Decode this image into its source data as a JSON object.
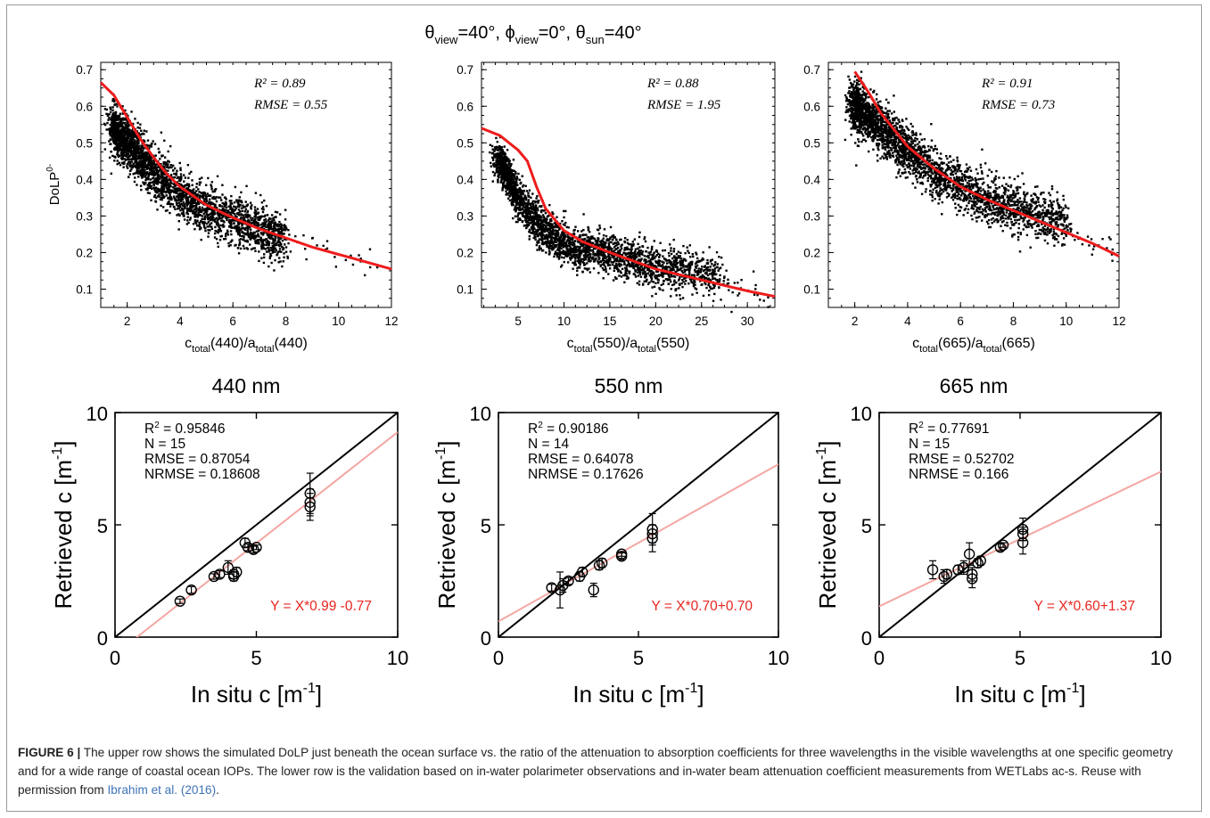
{
  "figure": {
    "geometry_title": {
      "theta": "θ",
      "view": "view",
      "eq40": "=40°, ",
      "phi": "ϕ",
      "eq0": "=0°, ",
      "sun": "sun",
      "eq40b": "=40°"
    },
    "top_ylabel": {
      "main": "DoLP",
      "sup": "0-"
    },
    "xlabel_parts": {
      "c": "c",
      "total": "total",
      "a": "/a"
    },
    "wavelength_labels": [
      "440 nm",
      "550 nm",
      "665 nm"
    ],
    "bottom_xlabel": {
      "main": "In situ c [m",
      "sup": "-1",
      "close": "]"
    },
    "bottom_ylabel": {
      "main": "Retrieved c [m",
      "sup": "-1",
      "close": "]"
    },
    "colors": {
      "fit_line": "#ee1c1c",
      "regression": "#f4a7a3",
      "one_to_one": "#000000",
      "scatter": "#000000",
      "equation": "#e8251f"
    }
  },
  "caption": {
    "label": "FIGURE 6 |",
    "text": " The upper row shows the simulated DoLP just beneath the ocean surface vs. the ratio of the attenuation to absorption coefficients for three wavelengths in the visible wavelengths at one specific geometry and for a wide range of coastal ocean IOPs. The lower row is the validation based on in-water polarimeter observations and in-water beam attenuation coefficient measurements from WETLabs ac-s. Reuse with permission from ",
    "link": "Ibrahim et al. (2016)",
    "end": "."
  },
  "chart_data": [
    {
      "type": "scatter",
      "wavelength": "440",
      "xlabel": "c_total(440)/a_total(440)",
      "ylabel": "DoLP^0-",
      "xlim": [
        1,
        12
      ],
      "ylim": [
        0.05,
        0.72
      ],
      "xticks": [
        2,
        4,
        6,
        8,
        10,
        12
      ],
      "yticks": [
        0.1,
        0.2,
        0.3,
        0.4,
        0.5,
        0.6,
        0.7
      ],
      "stats": {
        "r2": "R² = 0.89",
        "rmse": "RMSE = 0.55"
      },
      "fit_curve": {
        "x": [
          1,
          1.5,
          2,
          2.5,
          3,
          3.5,
          4,
          5,
          6,
          7,
          8,
          9,
          10,
          11,
          12
        ],
        "y": [
          0.665,
          0.63,
          0.57,
          0.51,
          0.46,
          0.415,
          0.38,
          0.33,
          0.295,
          0.265,
          0.24,
          0.215,
          0.195,
          0.175,
          0.155
        ]
      },
      "scatter_cloud": {
        "center": {
          "x": [
            1.5,
            2,
            2.5,
            3,
            3.5,
            4,
            5,
            6,
            7,
            8
          ],
          "y": [
            0.54,
            0.5,
            0.46,
            0.42,
            0.39,
            0.36,
            0.32,
            0.29,
            0.26,
            0.24
          ]
        },
        "spread": 0.06,
        "n_points": 2800
      }
    },
    {
      "type": "scatter",
      "wavelength": "550",
      "xlabel": "c_total(550)/a_total(550)",
      "ylabel": "DoLP^0-",
      "xlim": [
        1,
        33
      ],
      "ylim": [
        0.05,
        0.72
      ],
      "xticks": [
        5,
        10,
        15,
        20,
        25,
        30
      ],
      "yticks": [
        0.1,
        0.2,
        0.3,
        0.4,
        0.5,
        0.6,
        0.7
      ],
      "stats": {
        "r2": "R² = 0.88",
        "rmse": "RMSE = 1.95"
      },
      "fit_curve": {
        "x": [
          1,
          3,
          5,
          6,
          7,
          8,
          10,
          12,
          15,
          20,
          25,
          30,
          33
        ],
        "y": [
          0.54,
          0.52,
          0.48,
          0.45,
          0.38,
          0.32,
          0.26,
          0.23,
          0.2,
          0.155,
          0.125,
          0.095,
          0.08
        ]
      },
      "scatter_cloud": {
        "center": {
          "x": [
            3,
            5,
            7,
            9,
            11,
            14,
            17,
            20,
            24,
            27
          ],
          "y": [
            0.45,
            0.35,
            0.28,
            0.24,
            0.21,
            0.2,
            0.18,
            0.16,
            0.15,
            0.14
          ]
        },
        "spread": 0.05,
        "n_points": 2800
      }
    },
    {
      "type": "scatter",
      "wavelength": "665",
      "xlabel": "c_total(665)/a_total(665)",
      "ylabel": "DoLP^0-",
      "xlim": [
        1,
        12
      ],
      "ylim": [
        0.05,
        0.72
      ],
      "xticks": [
        2,
        4,
        6,
        8,
        10,
        12
      ],
      "yticks": [
        0.1,
        0.2,
        0.3,
        0.4,
        0.5,
        0.6,
        0.7
      ],
      "stats": {
        "r2": "R² = 0.91",
        "rmse": "RMSE = 0.73"
      },
      "fit_curve": {
        "x": [
          2,
          2.5,
          3,
          4,
          5,
          6,
          7,
          8,
          9,
          10,
          11,
          12
        ],
        "y": [
          0.695,
          0.64,
          0.58,
          0.49,
          0.43,
          0.38,
          0.345,
          0.315,
          0.285,
          0.255,
          0.225,
          0.19
        ]
      },
      "scatter_cloud": {
        "center": {
          "x": [
            2,
            3,
            4,
            5,
            6,
            7,
            8,
            9,
            10
          ],
          "y": [
            0.6,
            0.54,
            0.48,
            0.42,
            0.38,
            0.35,
            0.32,
            0.3,
            0.28
          ]
        },
        "spread": 0.06,
        "n_points": 2800
      }
    },
    {
      "type": "scatter",
      "wavelength": "440 nm",
      "xlabel": "In situ c [m-1]",
      "ylabel": "Retrieved c [m-1]",
      "xlim": [
        0,
        10
      ],
      "ylim": [
        0,
        10
      ],
      "xticks": [
        0,
        5,
        10
      ],
      "yticks": [
        0,
        5,
        10
      ],
      "stats": [
        "R2 = 0.95846",
        "N = 15",
        "RMSE = 0.87054",
        "NRMSE = 0.18608"
      ],
      "equation": "Y = X*0.99 -0.77",
      "regression": {
        "slope": 0.99,
        "intercept": -0.77
      },
      "points": [
        {
          "x": 2.3,
          "y": 1.6,
          "err": 0.1
        },
        {
          "x": 2.7,
          "y": 2.1,
          "err": 0.15
        },
        {
          "x": 3.5,
          "y": 2.7,
          "err": 0.12
        },
        {
          "x": 3.7,
          "y": 2.8,
          "err": 0.15
        },
        {
          "x": 4.0,
          "y": 3.1,
          "err": 0.3
        },
        {
          "x": 4.2,
          "y": 2.8,
          "err": 0.2
        },
        {
          "x": 4.2,
          "y": 2.7,
          "err": 0.2
        },
        {
          "x": 4.3,
          "y": 2.9,
          "err": 0.2
        },
        {
          "x": 4.6,
          "y": 4.2,
          "err": 0.2
        },
        {
          "x": 4.7,
          "y": 4.0,
          "err": 0.15
        },
        {
          "x": 4.9,
          "y": 3.9,
          "err": 0.15
        },
        {
          "x": 5.0,
          "y": 4.0,
          "err": 0.1
        },
        {
          "x": 6.9,
          "y": 6.4,
          "err": 0.9
        },
        {
          "x": 6.9,
          "y": 6.0,
          "err": 0.6
        },
        {
          "x": 6.9,
          "y": 5.8,
          "err": 0.6
        }
      ]
    },
    {
      "type": "scatter",
      "wavelength": "550 nm",
      "xlabel": "In situ c [m-1]",
      "ylabel": "Retrieved c [m-1]",
      "xlim": [
        0,
        10
      ],
      "ylim": [
        0,
        10
      ],
      "xticks": [
        0,
        5,
        10
      ],
      "yticks": [
        0,
        5,
        10
      ],
      "stats": [
        "R2 = 0.90186",
        "N = 14",
        "RMSE = 0.64078",
        "NRMSE = 0.17626"
      ],
      "equation": "Y = X*0.70+0.70",
      "regression": {
        "slope": 0.7,
        "intercept": 0.7
      },
      "points": [
        {
          "x": 1.9,
          "y": 2.2,
          "err": 0.15
        },
        {
          "x": 2.2,
          "y": 2.1,
          "err": 0.8
        },
        {
          "x": 2.3,
          "y": 2.3,
          "err": 0.3
        },
        {
          "x": 2.5,
          "y": 2.5,
          "err": 0.15
        },
        {
          "x": 2.9,
          "y": 2.7,
          "err": 0.2
        },
        {
          "x": 3.0,
          "y": 2.9,
          "err": 0.2
        },
        {
          "x": 3.4,
          "y": 2.1,
          "err": 0.3
        },
        {
          "x": 3.6,
          "y": 3.2,
          "err": 0.2
        },
        {
          "x": 3.7,
          "y": 3.3,
          "err": 0.2
        },
        {
          "x": 4.4,
          "y": 3.6,
          "err": 0.15
        },
        {
          "x": 4.4,
          "y": 3.7,
          "err": 0.1
        },
        {
          "x": 5.5,
          "y": 4.8,
          "err": 0.7
        },
        {
          "x": 5.5,
          "y": 4.4,
          "err": 0.6
        },
        {
          "x": 5.5,
          "y": 4.6,
          "err": 0.4
        }
      ]
    },
    {
      "type": "scatter",
      "wavelength": "665 nm",
      "xlabel": "In situ c [m-1]",
      "ylabel": "Retrieved c [m-1]",
      "xlim": [
        0,
        10
      ],
      "ylim": [
        0,
        10
      ],
      "xticks": [
        0,
        5,
        10
      ],
      "yticks": [
        0,
        5,
        10
      ],
      "stats": [
        "R2 = 0.77691",
        "N = 15",
        "RMSE = 0.52702",
        "NRMSE = 0.166"
      ],
      "equation": "Y = X*0.60+1.37",
      "regression": {
        "slope": 0.6,
        "intercept": 1.37
      },
      "points": [
        {
          "x": 1.9,
          "y": 3.0,
          "err": 0.4
        },
        {
          "x": 2.3,
          "y": 2.7,
          "err": 0.3
        },
        {
          "x": 2.4,
          "y": 2.8,
          "err": 0.2
        },
        {
          "x": 2.8,
          "y": 3.0,
          "err": 0.2
        },
        {
          "x": 3.0,
          "y": 3.1,
          "err": 0.3
        },
        {
          "x": 3.2,
          "y": 3.7,
          "err": 0.5
        },
        {
          "x": 3.3,
          "y": 2.6,
          "err": 0.4
        },
        {
          "x": 3.3,
          "y": 2.8,
          "err": 0.3
        },
        {
          "x": 3.5,
          "y": 3.3,
          "err": 0.2
        },
        {
          "x": 3.6,
          "y": 3.4,
          "err": 0.2
        },
        {
          "x": 4.3,
          "y": 4.0,
          "err": 0.15
        },
        {
          "x": 4.4,
          "y": 4.1,
          "err": 0.1
        },
        {
          "x": 5.1,
          "y": 4.8,
          "err": 0.5
        },
        {
          "x": 5.1,
          "y": 4.2,
          "err": 0.5
        },
        {
          "x": 5.1,
          "y": 4.6,
          "err": 0.3
        }
      ]
    }
  ]
}
